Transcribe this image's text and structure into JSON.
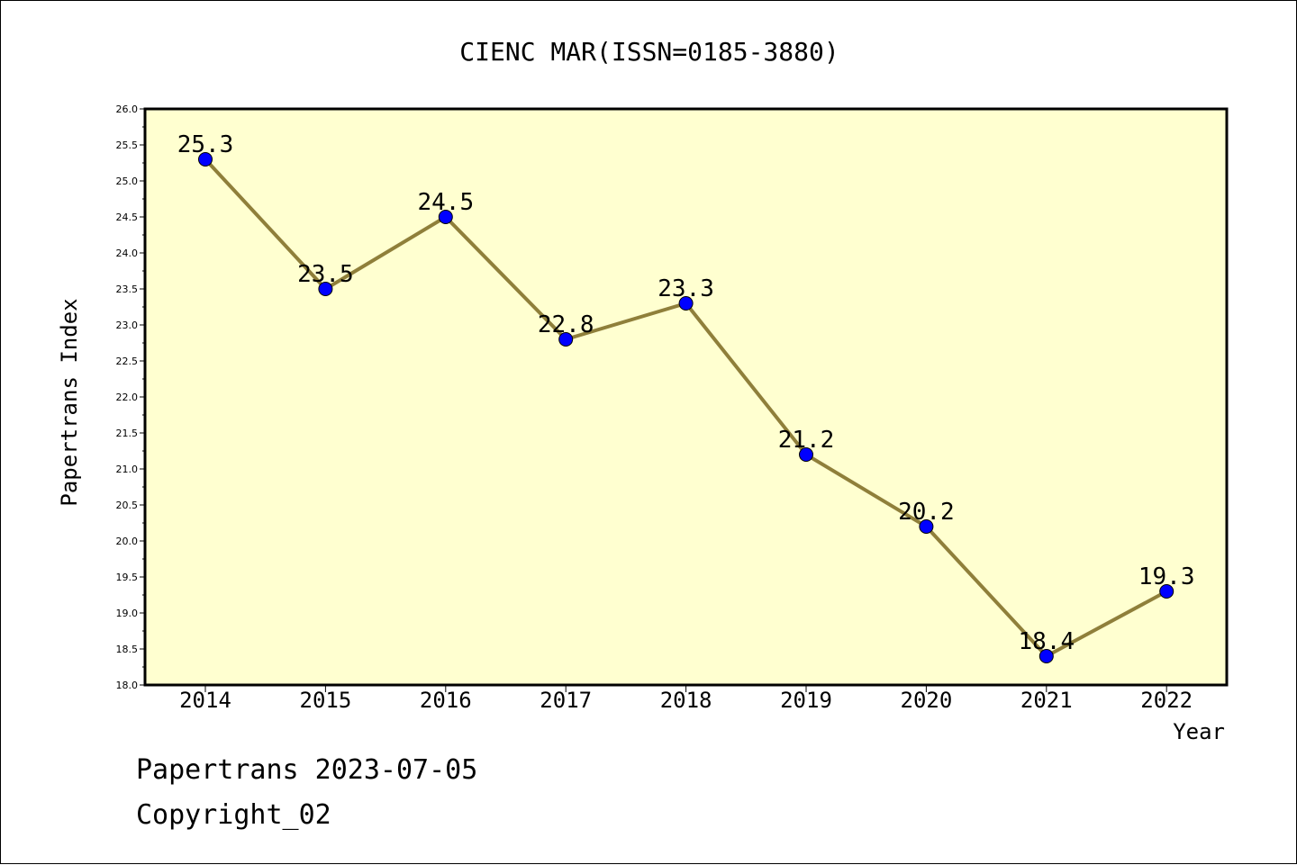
{
  "colors": {
    "plot_bg": "#ffffd0",
    "line": "#8f7f3a",
    "marker": "#0000ff",
    "axis": "#000000"
  },
  "footer": {
    "line1": "Papertrans 2023-07-05",
    "line2": "Copyright_02"
  },
  "chart_data": {
    "type": "line",
    "title": "CIENC MAR(ISSN=0185-3880)",
    "xlabel": "Year",
    "ylabel": "Papertrans Index",
    "categories": [
      "2014",
      "2015",
      "2016",
      "2017",
      "2018",
      "2019",
      "2020",
      "2021",
      "2022"
    ],
    "values": [
      25.3,
      23.5,
      24.5,
      22.8,
      23.3,
      21.2,
      20.2,
      18.4,
      19.3
    ],
    "data_labels": [
      "25.3",
      "23.5",
      "24.5",
      "22.8",
      "23.3",
      "21.2",
      "20.2",
      "18.4",
      "19.3"
    ],
    "ylim": [
      18.0,
      26.0
    ],
    "yticks": [
      "18.0",
      "18.5",
      "19.0",
      "19.5",
      "20.0",
      "20.5",
      "21.0",
      "21.5",
      "22.0",
      "22.5",
      "23.0",
      "23.5",
      "24.0",
      "24.5",
      "25.0",
      "25.5",
      "26.0"
    ],
    "grid": false,
    "legend": "none"
  }
}
